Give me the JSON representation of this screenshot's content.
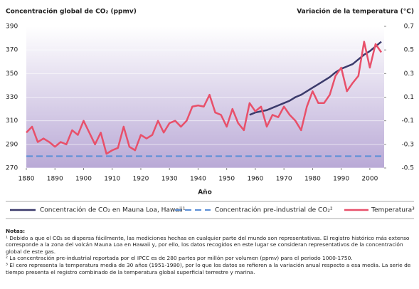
{
  "chart_data": {
    "type": "line",
    "ylabel": "Concentración global de CO₂ (ppmv)",
    "y2label": "Variación de la temperatura (°C)",
    "xlabel": "Año",
    "xlim": [
      1880,
      2005
    ],
    "xticks": [
      1880,
      1890,
      1900,
      1910,
      1920,
      1930,
      1940,
      1950,
      1960,
      1970,
      1980,
      1990,
      2000
    ],
    "ylim": [
      270,
      390
    ],
    "yticks": [
      270,
      290,
      310,
      330,
      350,
      370,
      390
    ],
    "y2lim": [
      -0.5,
      0.7
    ],
    "y2ticks": [
      -0.5,
      -0.3,
      -0.1,
      0.1,
      0.3,
      0.5,
      0.7
    ],
    "series": [
      {
        "name": "Concentración de CO₂ en Mauna Loa, Hawaii¹",
        "color": "#3b3a6b",
        "dash": false,
        "x": [
          1958,
          1960,
          1962,
          1964,
          1966,
          1968,
          1970,
          1972,
          1974,
          1976,
          1978,
          1980,
          1982,
          1984,
          1986,
          1988,
          1990,
          1992,
          1994,
          1996,
          1998,
          2000,
          2002,
          2004
        ],
        "values": [
          315,
          317,
          318,
          319,
          321,
          323,
          325,
          327,
          330,
          332,
          335,
          338,
          341,
          344,
          347,
          351,
          354,
          356,
          358,
          362,
          366,
          369,
          373,
          377
        ]
      },
      {
        "name": "Concentración pre-industrial de CO₂²",
        "color": "#5b8fd6",
        "dash": true,
        "x": [
          1880,
          2005
        ],
        "values": [
          280,
          280
        ]
      },
      {
        "name": "Temperatura³",
        "color": "#e8506a",
        "dash": false,
        "axis": "y2",
        "x": [
          1880,
          1882,
          1884,
          1886,
          1888,
          1890,
          1892,
          1894,
          1896,
          1898,
          1900,
          1902,
          1904,
          1906,
          1908,
          1910,
          1912,
          1914,
          1916,
          1918,
          1920,
          1922,
          1924,
          1926,
          1928,
          1930,
          1932,
          1934,
          1936,
          1938,
          1940,
          1942,
          1944,
          1946,
          1948,
          1950,
          1952,
          1954,
          1956,
          1958,
          1960,
          1962,
          1964,
          1966,
          1968,
          1970,
          1972,
          1974,
          1976,
          1978,
          1980,
          1982,
          1984,
          1986,
          1988,
          1990,
          1992,
          1994,
          1996,
          1998,
          2000,
          2002,
          2004
        ],
        "values": [
          -0.2,
          -0.15,
          -0.28,
          -0.25,
          -0.28,
          -0.32,
          -0.28,
          -0.3,
          -0.18,
          -0.22,
          -0.1,
          -0.2,
          -0.3,
          -0.2,
          -0.38,
          -0.35,
          -0.33,
          -0.15,
          -0.32,
          -0.35,
          -0.22,
          -0.25,
          -0.22,
          -0.1,
          -0.2,
          -0.12,
          -0.1,
          -0.15,
          -0.1,
          0.02,
          0.03,
          0.02,
          0.12,
          -0.03,
          -0.05,
          -0.15,
          0.0,
          -0.12,
          -0.18,
          0.05,
          -0.02,
          0.02,
          -0.15,
          -0.05,
          -0.07,
          0.02,
          -0.05,
          -0.1,
          -0.18,
          0.02,
          0.15,
          0.05,
          0.05,
          0.12,
          0.28,
          0.35,
          0.15,
          0.22,
          0.28,
          0.57,
          0.35,
          0.55,
          0.48
        ]
      }
    ]
  },
  "notes": {
    "title": "Notas:",
    "items": [
      "¹ Debido a que el CO₂ se dispersa fácilmente, las mediciones hechas en cualquier parte del mundo son representativas. El registro histórico más extenso corresponde a la zona del volcán Mauna Loa en Hawaii y, por ello, los datos recogidos en este lugar se consideran representativos de la concentración global de este gas.",
      "² La concentración pre-industrial reportada por el IPCC es de 280 partes por millón por volumen (ppmv) para el periodo 1000-1750.",
      "³ El cero representa la temperatura media de 30 años (1951-1980), por lo que los datos se refieren a la variación anual respecto a esa media. La serie de tiempo presenta el registro combinado de la temperatura global superficial terrestre y marina."
    ]
  }
}
